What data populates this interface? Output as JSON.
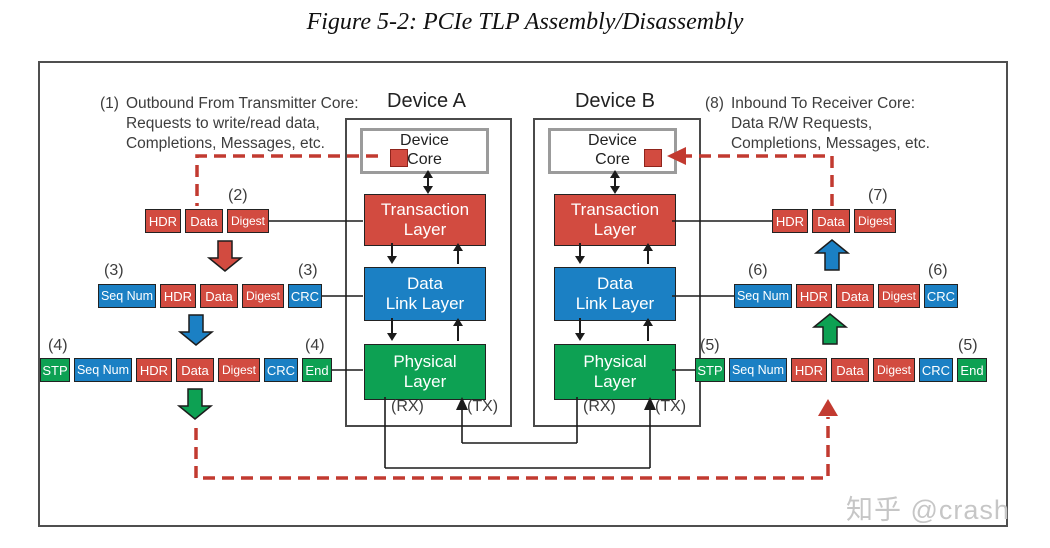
{
  "title": "Figure 5-2: PCIe TLP Assembly/Disassembly",
  "watermark": "知乎 @crash",
  "colors": {
    "red": "#d24b40",
    "blue": "#1b80c4",
    "green": "#0da153",
    "dashred": "#c23a30"
  },
  "annotations": {
    "outbound": {
      "num": "(1)",
      "lines": [
        "Outbound From Transmitter Core:",
        "Requests to write/read data,",
        "Completions, Messages, etc."
      ]
    },
    "inbound": {
      "num": "(8)",
      "lines": [
        "Inbound To Receiver Core:",
        "Data R/W Requests,",
        "Completions, Messages, etc."
      ]
    }
  },
  "devices": {
    "a": {
      "title": "Device A",
      "core": [
        "Device",
        "Core"
      ],
      "layers": [
        [
          "Transaction",
          "Layer"
        ],
        [
          "Data",
          "Link Layer"
        ],
        [
          "Physical",
          "Layer"
        ]
      ],
      "rx": "(RX)",
      "tx": "(TX)"
    },
    "b": {
      "title": "Device B",
      "core": [
        "Device",
        "Core"
      ],
      "layers": [
        [
          "Transaction",
          "Layer"
        ],
        [
          "Data",
          "Link Layer"
        ],
        [
          "Physical",
          "Layer"
        ]
      ],
      "rx": "(RX)",
      "tx": "(TX)"
    }
  },
  "rows": {
    "r2": {
      "tag": "(2)",
      "segments": [
        {
          "label": "HDR",
          "color": "red"
        },
        {
          "label": "Data",
          "color": "red"
        },
        {
          "label": "Digest",
          "color": "red"
        }
      ]
    },
    "r3": {
      "tag": "(3)",
      "segments": [
        {
          "label": "Seq Num",
          "color": "blue"
        },
        {
          "label": "HDR",
          "color": "red"
        },
        {
          "label": "Data",
          "color": "red"
        },
        {
          "label": "Digest",
          "color": "red"
        },
        {
          "label": "CRC",
          "color": "blue"
        }
      ]
    },
    "r4": {
      "tag": "(4)",
      "segments": [
        {
          "label": "STP",
          "color": "green"
        },
        {
          "label": "Seq Num",
          "color": "blue"
        },
        {
          "label": "HDR",
          "color": "red"
        },
        {
          "label": "Data",
          "color": "red"
        },
        {
          "label": "Digest",
          "color": "red"
        },
        {
          "label": "CRC",
          "color": "blue"
        },
        {
          "label": "End",
          "color": "green"
        }
      ]
    },
    "r5": {
      "tag": "(5)",
      "segments": [
        {
          "label": "STP",
          "color": "green"
        },
        {
          "label": "Seq Num",
          "color": "blue"
        },
        {
          "label": "HDR",
          "color": "red"
        },
        {
          "label": "Data",
          "color": "red"
        },
        {
          "label": "Digest",
          "color": "red"
        },
        {
          "label": "CRC",
          "color": "blue"
        },
        {
          "label": "End",
          "color": "green"
        }
      ]
    },
    "r6": {
      "tag": "(6)",
      "segments": [
        {
          "label": "Seq Num",
          "color": "blue"
        },
        {
          "label": "HDR",
          "color": "red"
        },
        {
          "label": "Data",
          "color": "red"
        },
        {
          "label": "Digest",
          "color": "red"
        },
        {
          "label": "CRC",
          "color": "blue"
        }
      ]
    },
    "r7": {
      "tag": "(7)",
      "segments": [
        {
          "label": "HDR",
          "color": "red"
        },
        {
          "label": "Data",
          "color": "red"
        },
        {
          "label": "Digest",
          "color": "red"
        }
      ]
    }
  }
}
